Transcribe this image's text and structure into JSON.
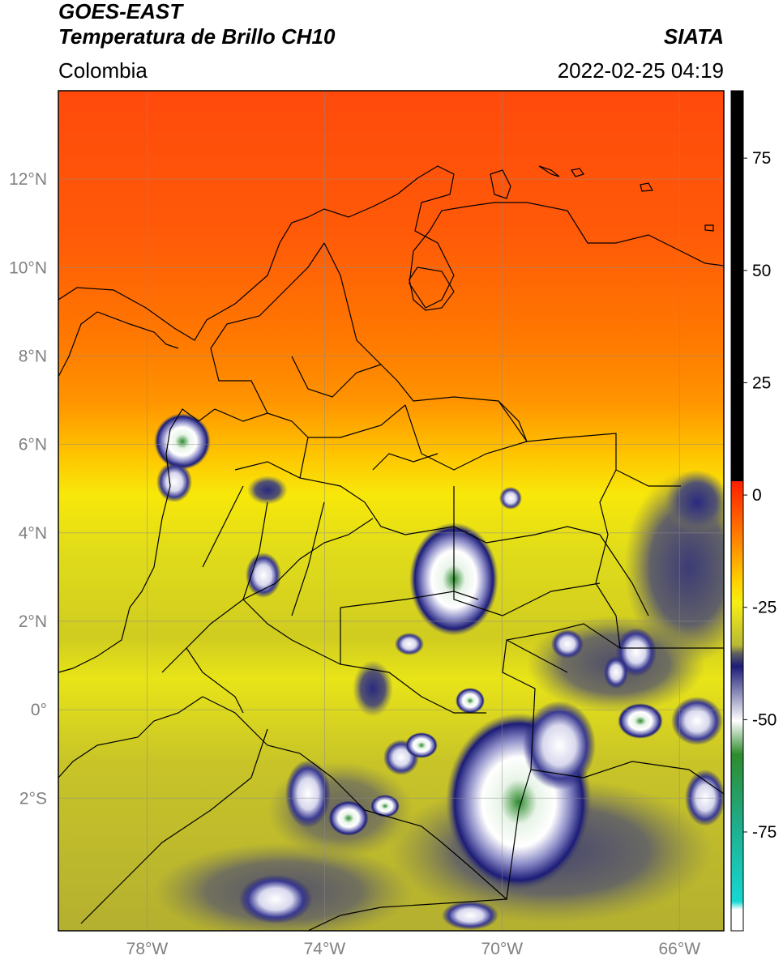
{
  "header": {
    "satellite": "GOES-EAST",
    "product": "Temperatura de Brillo CH10",
    "agency": "SIATA",
    "region": "Colombia",
    "timestamp": "2022-02-25 04:19"
  },
  "map": {
    "lon_range": [
      -80,
      -65
    ],
    "lat_range": [
      -5,
      14
    ],
    "lat_ticks": [
      "12°N",
      "10°N",
      "8°N",
      "6°N",
      "4°N",
      "2°N",
      "0°",
      "2°S"
    ],
    "lon_ticks": [
      "78°W",
      "74°W",
      "70°W",
      "66°W"
    ]
  },
  "colorbar": {
    "range": [
      -97,
      90
    ],
    "labels": [
      "75",
      "50",
      "25",
      "0",
      "-25",
      "-50",
      "-75"
    ],
    "colors": {
      "black": "#000000",
      "red": "#ff1e00",
      "orange": "#ff8c00",
      "yellow": "#f5ee14",
      "olive": "#b9b935",
      "gray": "#5f5f5f",
      "navy": "#1c1c78",
      "white": "#ffffff",
      "green": "#2e8b2e",
      "cyan": "#16d8d2"
    }
  }
}
